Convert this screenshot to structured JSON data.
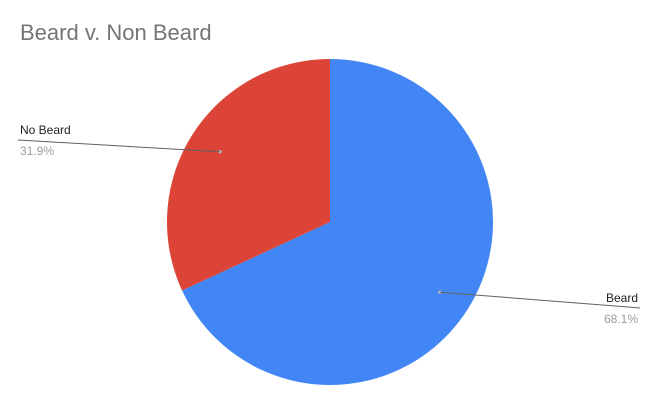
{
  "chart_data": {
    "type": "pie",
    "title": "Beard v. Non Beard",
    "legend": "labeled-slices",
    "slices": [
      {
        "label": "Beard",
        "percent_label": "68.1%",
        "value": 68.1,
        "color": "#4285f4"
      },
      {
        "label": "No Beard",
        "percent_label": "31.9%",
        "value": 31.9,
        "color": "#db4437"
      }
    ]
  }
}
